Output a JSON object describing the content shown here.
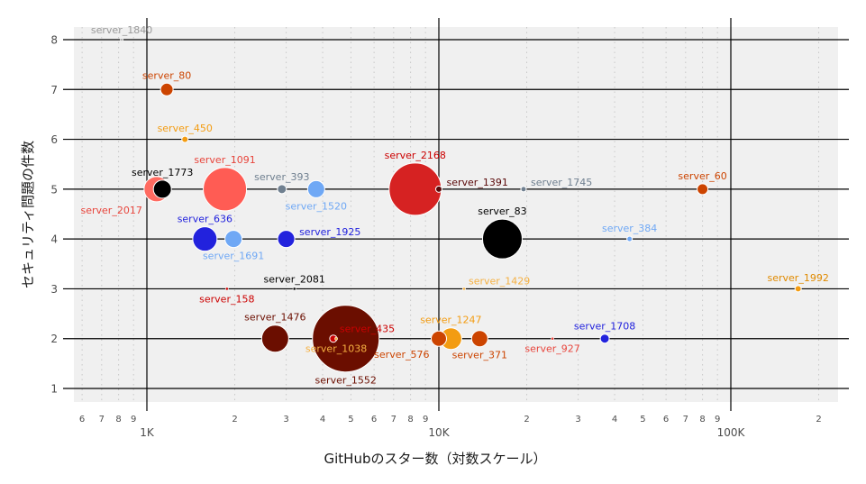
{
  "chart_data": {
    "type": "scatter",
    "title": "",
    "xlabel": "GitHubのスター数（対数スケール）",
    "ylabel": "セキュリティ問題の件数",
    "x_scale": "log",
    "xlim": [
      500,
      250000
    ],
    "ylim": [
      0.75,
      8.3
    ],
    "grid": true,
    "x_major_ticks": [
      {
        "value": 1000,
        "label": "1K"
      },
      {
        "value": 10000,
        "label": "10K"
      },
      {
        "value": 100000,
        "label": "100K"
      }
    ],
    "x_minor_ticks": [
      {
        "value": 600,
        "label": "6"
      },
      {
        "value": 700,
        "label": "7"
      },
      {
        "value": 800,
        "label": "8"
      },
      {
        "value": 900,
        "label": "9"
      },
      {
        "value": 2000,
        "label": "2"
      },
      {
        "value": 3000,
        "label": "3"
      },
      {
        "value": 4000,
        "label": "4"
      },
      {
        "value": 5000,
        "label": "5"
      },
      {
        "value": 6000,
        "label": "6"
      },
      {
        "value": 7000,
        "label": "7"
      },
      {
        "value": 8000,
        "label": "8"
      },
      {
        "value": 9000,
        "label": "9"
      },
      {
        "value": 20000,
        "label": "2"
      },
      {
        "value": 30000,
        "label": "3"
      },
      {
        "value": 40000,
        "label": "4"
      },
      {
        "value": 50000,
        "label": "5"
      },
      {
        "value": 60000,
        "label": "6"
      },
      {
        "value": 70000,
        "label": "7"
      },
      {
        "value": 80000,
        "label": "8"
      },
      {
        "value": 90000,
        "label": "9"
      },
      {
        "value": 200000,
        "label": "2"
      }
    ],
    "y_ticks": [
      1,
      2,
      3,
      4,
      5,
      6,
      7,
      8
    ],
    "points": [
      {
        "name": "server_1840",
        "x": 820,
        "y": 8,
        "size": 0,
        "color": "#b0b0b0",
        "label_color": "#999999",
        "label_pos": "above"
      },
      {
        "name": "server_80",
        "x": 1170,
        "y": 7,
        "size": 14,
        "color": "#cc4400",
        "label_color": "#cc4400",
        "label_pos": "above"
      },
      {
        "name": "server_450",
        "x": 1350,
        "y": 6,
        "size": 7,
        "color": "#f39c12",
        "label_color": "#f39c12",
        "label_pos": "above"
      },
      {
        "name": "server_1773",
        "x": 1130,
        "y": 5,
        "size": 20,
        "color": "#000000",
        "label_color": "#000000",
        "label_pos": "above"
      },
      {
        "name": "server_2017",
        "x": 1080,
        "y": 5,
        "size": 28,
        "color": "#ff6b61",
        "label_color": "#e8453c",
        "label_pos": "below-left"
      },
      {
        "name": "server_1091",
        "x": 1850,
        "y": 5,
        "size": 48,
        "color": "#ff5c54",
        "label_color": "#e8453c",
        "label_pos": "above"
      },
      {
        "name": "server_393",
        "x": 2900,
        "y": 5,
        "size": 10,
        "color": "#708090",
        "label_color": "#708090",
        "label_pos": "above"
      },
      {
        "name": "server_1520",
        "x": 3800,
        "y": 5,
        "size": 19,
        "color": "#6fa8f5",
        "label_color": "#6fa8f5",
        "label_pos": "below"
      },
      {
        "name": "server_2168",
        "x": 8300,
        "y": 5,
        "size": 58,
        "color": "#d62222",
        "label_color": "#cc0000",
        "label_pos": "above"
      },
      {
        "name": "server_1391",
        "x": 10000,
        "y": 5,
        "size": 7,
        "color": "#5a0a0a",
        "label_color": "#5a0a0a",
        "label_pos": "right"
      },
      {
        "name": "server_1745",
        "x": 19500,
        "y": 5,
        "size": 6,
        "color": "#708090",
        "label_color": "#708090",
        "label_pos": "right"
      },
      {
        "name": "server_60",
        "x": 80000,
        "y": 5,
        "size": 12,
        "color": "#cc4400",
        "label_color": "#cc4400",
        "label_pos": "above"
      },
      {
        "name": "server_636",
        "x": 1580,
        "y": 4,
        "size": 27,
        "color": "#2222dd",
        "label_color": "#2222dd",
        "label_pos": "above"
      },
      {
        "name": "server_1691",
        "x": 1980,
        "y": 4,
        "size": 19,
        "color": "#6fa8f5",
        "label_color": "#6fa8f5",
        "label_pos": "below"
      },
      {
        "name": "server_1925",
        "x": 3000,
        "y": 4,
        "size": 19,
        "color": "#2222dd",
        "label_color": "#2222dd",
        "label_pos": "right"
      },
      {
        "name": "server_83",
        "x": 16500,
        "y": 4,
        "size": 44,
        "color": "#000000",
        "label_color": "#000000",
        "label_pos": "above"
      },
      {
        "name": "server_384",
        "x": 45000,
        "y": 4,
        "size": 6,
        "color": "#6fa8f5",
        "label_color": "#6fa8f5",
        "label_pos": "above"
      },
      {
        "name": "server_158",
        "x": 1880,
        "y": 3,
        "size": 0,
        "color": "#cc0000",
        "label_color": "#cc0000",
        "label_pos": "below"
      },
      {
        "name": "server_2081",
        "x": 3200,
        "y": 3,
        "size": 0,
        "color": "#000000",
        "label_color": "#000000",
        "label_pos": "above"
      },
      {
        "name": "server_1429",
        "x": 12200,
        "y": 3,
        "size": 0,
        "color": "#f5b041",
        "label_color": "#f5b041",
        "label_pos": "above-right"
      },
      {
        "name": "server_1992",
        "x": 170000,
        "y": 3,
        "size": 7,
        "color": "#f39c12",
        "label_color": "#e08a00",
        "label_pos": "above"
      },
      {
        "name": "server_1476",
        "x": 2750,
        "y": 2,
        "size": 30,
        "color": "#6b0e00",
        "label_color": "#6b0e00",
        "label_pos": "above"
      },
      {
        "name": "server_435",
        "x": 4350,
        "y": 2,
        "size": 8,
        "color": "#cc0000",
        "label_color": "#cc0000",
        "label_pos": "above-right"
      },
      {
        "name": "server_1038",
        "x": 4450,
        "y": 2,
        "size": 0,
        "color": "#f5b041",
        "label_color": "#f5b041",
        "label_pos": "below"
      },
      {
        "name": "server_1552",
        "x": 4800,
        "y": 2,
        "size": 74,
        "color": "#6b0e00",
        "label_color": "#6b0e00",
        "label_pos": "below"
      },
      {
        "name": "server_1247",
        "x": 11000,
        "y": 2,
        "size": 24,
        "color": "#f39c12",
        "label_color": "#f39c12",
        "label_pos": "above"
      },
      {
        "name": "server_576",
        "x": 10000,
        "y": 2,
        "size": 17,
        "color": "#cc4400",
        "label_color": "#cc4400",
        "label_pos": "below-left"
      },
      {
        "name": "server_371",
        "x": 13800,
        "y": 2,
        "size": 18,
        "color": "#cc4400",
        "label_color": "#cc4400",
        "label_pos": "below"
      },
      {
        "name": "server_927",
        "x": 24500,
        "y": 2,
        "size": 0,
        "color": "#e8453c",
        "label_color": "#e8453c",
        "label_pos": "below"
      },
      {
        "name": "server_1708",
        "x": 37000,
        "y": 2,
        "size": 10,
        "color": "#2222dd",
        "label_color": "#2222dd",
        "label_pos": "above"
      }
    ]
  }
}
